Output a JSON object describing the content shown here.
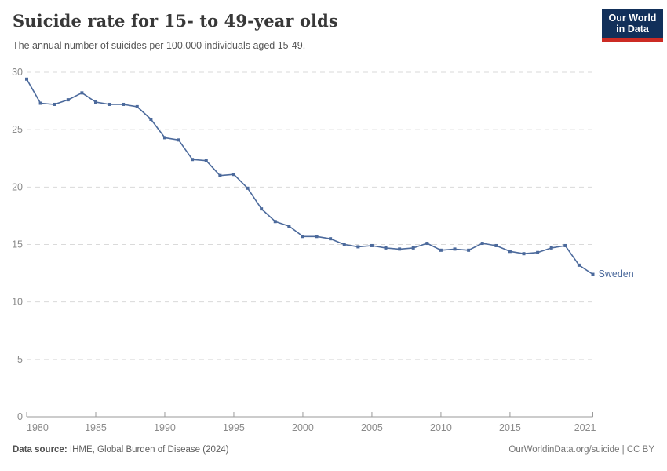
{
  "header": {
    "title": "Suicide rate for 15- to 49-year olds",
    "subtitle": "The annual number of suicides per 100,000 individuals aged 15-49.",
    "logo": {
      "line1": "Our World",
      "line2": "in Data",
      "bg_color": "#12305a",
      "bar_color": "#cc2b24"
    }
  },
  "chart_data": {
    "type": "line",
    "title": "Suicide rate for 15- to 49-year olds",
    "xlabel": "",
    "ylabel": "Suicides per 100,000 individuals aged 15-49",
    "x": [
      1980,
      1981,
      1982,
      1983,
      1984,
      1985,
      1986,
      1987,
      1988,
      1989,
      1990,
      1991,
      1992,
      1993,
      1994,
      1995,
      1996,
      1997,
      1998,
      1999,
      2000,
      2001,
      2002,
      2003,
      2004,
      2005,
      2006,
      2007,
      2008,
      2009,
      2010,
      2011,
      2012,
      2013,
      2014,
      2015,
      2016,
      2017,
      2018,
      2019,
      2020,
      2021
    ],
    "series": [
      {
        "name": "Sweden",
        "color": "#4c6a9c",
        "values": [
          29.4,
          27.3,
          27.2,
          27.6,
          28.2,
          27.4,
          27.2,
          27.2,
          27.0,
          25.9,
          24.3,
          24.1,
          22.4,
          22.3,
          21.0,
          21.1,
          19.9,
          18.1,
          17.0,
          16.6,
          15.7,
          15.7,
          15.5,
          15.0,
          14.8,
          14.9,
          14.7,
          14.6,
          14.7,
          15.1,
          14.5,
          14.6,
          14.5,
          15.1,
          14.9,
          14.4,
          14.2,
          14.3,
          14.7,
          14.9,
          13.2,
          12.4
        ]
      }
    ],
    "xlim": [
      1980,
      2021
    ],
    "ylim": [
      0,
      30
    ],
    "yticks": [
      0,
      5,
      10,
      15,
      20,
      25,
      30
    ],
    "xticks": [
      1980,
      1985,
      1990,
      1995,
      2000,
      2005,
      2010,
      2015,
      2021
    ],
    "grid": "horizontal-dashed",
    "legend_position": "end-of-line-label",
    "colors": {
      "grid": "#dadada",
      "axis": "#9a9a9a",
      "tick_label": "#8a8a8a"
    }
  },
  "footer": {
    "source_label": "Data source:",
    "source_text": "IHME, Global Burden of Disease (2024)",
    "credit": "OurWorldinData.org/suicide | CC BY"
  }
}
